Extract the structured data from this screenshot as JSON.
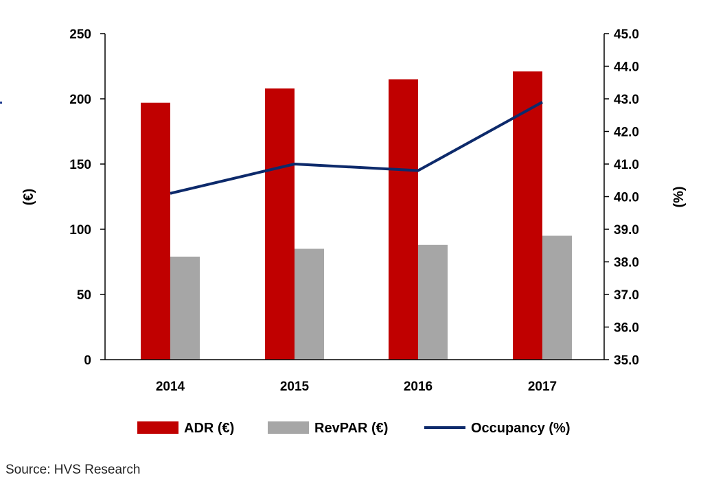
{
  "chart_data": {
    "type": "bar",
    "categories": [
      "2014",
      "2015",
      "2016",
      "2017"
    ],
    "series": [
      {
        "name": "ADR (€)",
        "type": "bar",
        "axis": "left",
        "color": "#c00000",
        "values": [
          197,
          208,
          215,
          221
        ]
      },
      {
        "name": "RevPAR (€)",
        "type": "bar",
        "axis": "left",
        "color": "#a6a6a6",
        "values": [
          79,
          85,
          88,
          95
        ]
      },
      {
        "name": "Occupancy (%)",
        "type": "line",
        "axis": "right",
        "color": "#0d2a6b",
        "values": [
          40.1,
          41.0,
          40.8,
          42.9
        ]
      }
    ],
    "ylabel": "(€)",
    "ylabel_right": "(%)",
    "ylim": [
      0,
      250
    ],
    "ylim_right": [
      35.0,
      45.0
    ],
    "yticks": [
      "0",
      "50",
      "100",
      "150",
      "200",
      "250"
    ],
    "yticks_right": [
      "35.0",
      "36.0",
      "37.0",
      "38.0",
      "39.0",
      "40.0",
      "41.0",
      "42.0",
      "43.0",
      "44.0",
      "45.0"
    ],
    "legend_position": "bottom",
    "grid": false
  },
  "source": "Source: HVS Research"
}
